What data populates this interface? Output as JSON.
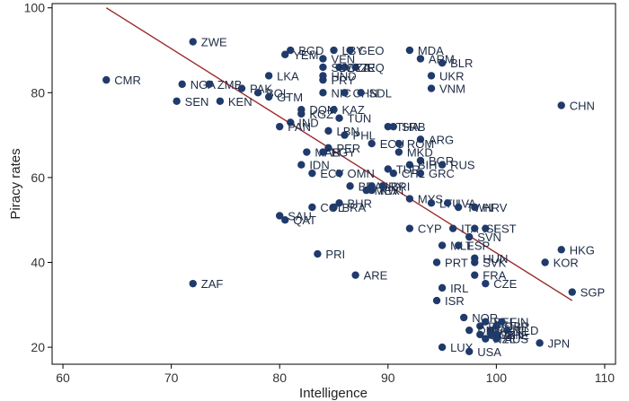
{
  "chart_data": {
    "type": "scatter",
    "title": "",
    "xlabel": "Intelligence",
    "ylabel": "Piracy rates",
    "xlim": [
      59,
      111
    ],
    "ylim": [
      16,
      101
    ],
    "xticks": [
      60,
      70,
      80,
      90,
      100,
      110
    ],
    "yticks": [
      20,
      40,
      60,
      80,
      100
    ],
    "grid": false,
    "marker_color": "#1f3a6b",
    "line_color": "#9b2a2a",
    "trend_line": {
      "x": [
        64,
        107
      ],
      "y": [
        100,
        31
      ]
    },
    "points": [
      {
        "label": "ZWE",
        "x": 72,
        "y": 92
      },
      {
        "label": "CMR",
        "x": 64,
        "y": 83
      },
      {
        "label": "NGA",
        "x": 71,
        "y": 82
      },
      {
        "label": "ZMB",
        "x": 73.5,
        "y": 82
      },
      {
        "label": "SEN",
        "x": 70.5,
        "y": 78
      },
      {
        "label": "KEN",
        "x": 74.5,
        "y": 78
      },
      {
        "label": "PAK",
        "x": 76.5,
        "y": 81
      },
      {
        "label": "BOL",
        "x": 78,
        "y": 80
      },
      {
        "label": "GTM",
        "x": 79,
        "y": 79
      },
      {
        "label": "LKA",
        "x": 79,
        "y": 84
      },
      {
        "label": "BGD",
        "x": 81,
        "y": 90
      },
      {
        "label": "YEM",
        "x": 80.5,
        "y": 89
      },
      {
        "label": "VEN",
        "x": 84,
        "y": 88
      },
      {
        "label": "LBY",
        "x": 85,
        "y": 90
      },
      {
        "label": "GEO",
        "x": 86.5,
        "y": 90
      },
      {
        "label": "DZA",
        "x": 85.5,
        "y": 86
      },
      {
        "label": "IRQ",
        "x": 87,
        "y": 86
      },
      {
        "label": "AZE",
        "x": 86,
        "y": 86
      },
      {
        "label": "SLV",
        "x": 84,
        "y": 86
      },
      {
        "label": "PRY",
        "x": 84,
        "y": 83
      },
      {
        "label": "HND",
        "x": 84,
        "y": 84
      },
      {
        "label": "NIC",
        "x": 84,
        "y": 80
      },
      {
        "label": "CHN",
        "x": 86,
        "y": 80
      },
      {
        "label": "MDA",
        "x": 92,
        "y": 90
      },
      {
        "label": "ARM",
        "x": 93,
        "y": 88
      },
      {
        "label": "BLR",
        "x": 95,
        "y": 87
      },
      {
        "label": "UKR",
        "x": 94,
        "y": 84
      },
      {
        "label": "VNM",
        "x": 94,
        "y": 81
      },
      {
        "label": "SDL",
        "x": 87.5,
        "y": 80
      },
      {
        "label": "DOM",
        "x": 82,
        "y": 76
      },
      {
        "label": "KAZ",
        "x": 85,
        "y": 76
      },
      {
        "label": "KGZ",
        "x": 82,
        "y": 75
      },
      {
        "label": "TUN",
        "x": 85.5,
        "y": 74
      },
      {
        "label": "IND",
        "x": 81,
        "y": 73
      },
      {
        "label": "PAN",
        "x": 80,
        "y": 72
      },
      {
        "label": "LBN",
        "x": 84.5,
        "y": 71
      },
      {
        "label": "PHL",
        "x": 86,
        "y": 70
      },
      {
        "label": "THA",
        "x": 90,
        "y": 72
      },
      {
        "label": "SRB",
        "x": 90.5,
        "y": 72
      },
      {
        "label": "CHN",
        "x": 106,
        "y": 77
      },
      {
        "label": "ARG",
        "x": 93,
        "y": 69
      },
      {
        "label": "ECU",
        "x": 88.5,
        "y": 68
      },
      {
        "label": "ROM",
        "x": 91,
        "y": 68
      },
      {
        "label": "MKD",
        "x": 91,
        "y": 66
      },
      {
        "label": "PER",
        "x": 84.5,
        "y": 67
      },
      {
        "label": "MAR",
        "x": 82.5,
        "y": 66
      },
      {
        "label": "EGY",
        "x": 84,
        "y": 66
      },
      {
        "label": "BGR",
        "x": 93,
        "y": 64
      },
      {
        "label": "RUS",
        "x": 95,
        "y": 63
      },
      {
        "label": "BIH",
        "x": 92,
        "y": 63
      },
      {
        "label": "TUR",
        "x": 90,
        "y": 62
      },
      {
        "label": "CHL",
        "x": 90.5,
        "y": 61
      },
      {
        "label": "GRC",
        "x": 93,
        "y": 61
      },
      {
        "label": "IDN",
        "x": 82,
        "y": 63
      },
      {
        "label": "ECY",
        "x": 83,
        "y": 61
      },
      {
        "label": "OMN",
        "x": 85.5,
        "y": 61
      },
      {
        "label": "BRA",
        "x": 86.5,
        "y": 58
      },
      {
        "label": "KWT",
        "x": 88.5,
        "y": 57
      },
      {
        "label": "MEX",
        "x": 88,
        "y": 57
      },
      {
        "label": "URY",
        "x": 88.5,
        "y": 58
      },
      {
        "label": "BRI",
        "x": 89.5,
        "y": 58
      },
      {
        "label": "MYS",
        "x": 92,
        "y": 55
      },
      {
        "label": "LTU",
        "x": 94,
        "y": 54
      },
      {
        "label": "LVA",
        "x": 95.5,
        "y": 54
      },
      {
        "label": "TWN",
        "x": 96.5,
        "y": 53
      },
      {
        "label": "HRV",
        "x": 98,
        "y": 53
      },
      {
        "label": "COL",
        "x": 83,
        "y": 53
      },
      {
        "label": "BHR",
        "x": 85.5,
        "y": 54
      },
      {
        "label": "BRA",
        "x": 85,
        "y": 53
      },
      {
        "label": "SAU",
        "x": 80,
        "y": 51
      },
      {
        "label": "QAT",
        "x": 80.5,
        "y": 50
      },
      {
        "label": "CYP",
        "x": 92,
        "y": 48
      },
      {
        "label": "ITA",
        "x": 96,
        "y": 48
      },
      {
        "label": "ISL",
        "x": 98,
        "y": 48
      },
      {
        "label": "EST",
        "x": 99,
        "y": 48
      },
      {
        "label": "SVN",
        "x": 97.5,
        "y": 46
      },
      {
        "label": "MLT",
        "x": 95,
        "y": 44
      },
      {
        "label": "ESP",
        "x": 96.5,
        "y": 44
      },
      {
        "label": "HKG",
        "x": 106,
        "y": 43
      },
      {
        "label": "KOR",
        "x": 104.5,
        "y": 40
      },
      {
        "label": "PRI",
        "x": 83.5,
        "y": 42
      },
      {
        "label": "PRT",
        "x": 94.5,
        "y": 40
      },
      {
        "label": "HUN",
        "x": 98,
        "y": 41
      },
      {
        "label": "SVK",
        "x": 98,
        "y": 40
      },
      {
        "label": "FRA",
        "x": 98,
        "y": 37
      },
      {
        "label": "CZE",
        "x": 99,
        "y": 35
      },
      {
        "label": "SGP",
        "x": 107,
        "y": 33
      },
      {
        "label": "ARE",
        "x": 87,
        "y": 37
      },
      {
        "label": "IRL",
        "x": 95,
        "y": 34
      },
      {
        "label": "ISR",
        "x": 94.5,
        "y": 31
      },
      {
        "label": "ZAF",
        "x": 72,
        "y": 35
      },
      {
        "label": "NOR",
        "x": 97,
        "y": 27
      },
      {
        "label": "BEL",
        "x": 99,
        "y": 26
      },
      {
        "label": "DEU",
        "x": 98.5,
        "y": 25
      },
      {
        "label": "GBR",
        "x": 100,
        "y": 25
      },
      {
        "label": "AUT",
        "x": 99.5,
        "y": 24
      },
      {
        "label": "FIN",
        "x": 100.5,
        "y": 26
      },
      {
        "label": "DNK",
        "x": 97.5,
        "y": 24
      },
      {
        "label": "SWE",
        "x": 98.5,
        "y": 23
      },
      {
        "label": "NLD",
        "x": 101,
        "y": 24
      },
      {
        "label": "CHE",
        "x": 100,
        "y": 23
      },
      {
        "label": "NZL",
        "x": 99,
        "y": 22
      },
      {
        "label": "AUS",
        "x": 100,
        "y": 22
      },
      {
        "label": "CAN",
        "x": 99.5,
        "y": 23
      },
      {
        "label": "JPN",
        "x": 104,
        "y": 21
      },
      {
        "label": "LUX",
        "x": 95,
        "y": 20
      },
      {
        "label": "USA",
        "x": 97.5,
        "y": 19
      }
    ]
  }
}
